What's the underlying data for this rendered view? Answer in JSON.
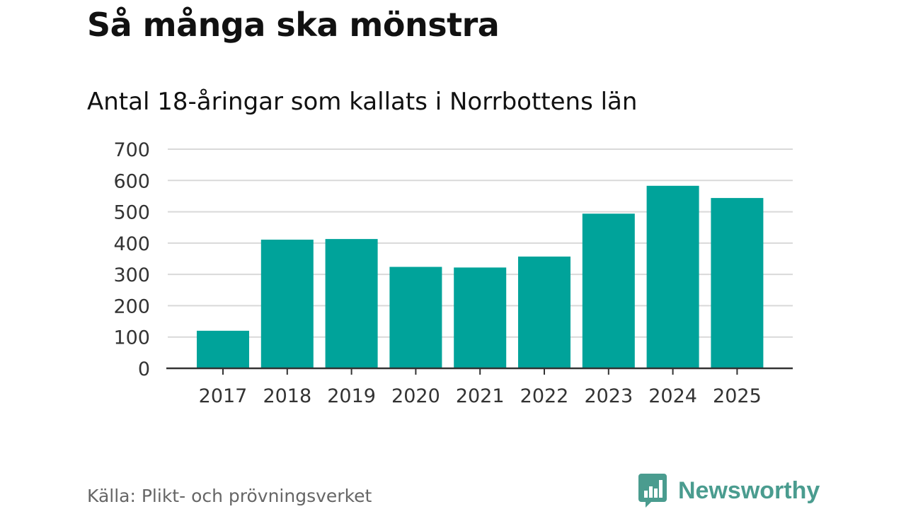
{
  "header": {
    "title": "Så många ska mönstra",
    "subtitle": "Antal 18-åringar som kallats i Norrbottens län"
  },
  "chart_data": {
    "type": "bar",
    "title": "Så många ska mönstra",
    "subtitle": "Antal 18-åringar som kallats i Norrbottens län",
    "categories": [
      "2017",
      "2018",
      "2019",
      "2020",
      "2021",
      "2022",
      "2023",
      "2024",
      "2025"
    ],
    "values": [
      120,
      411,
      413,
      324,
      322,
      357,
      494,
      583,
      544
    ],
    "yticks": [
      "0",
      "100",
      "200",
      "300",
      "400",
      "500",
      "600",
      "700"
    ],
    "ylim": [
      0,
      700
    ],
    "grid": true,
    "legend": "none",
    "xlabel": "",
    "ylabel": "",
    "bar_color": "#00a39a"
  },
  "footer": {
    "source": "Källa: Plikt- och prövningsverket",
    "brand": "Newsworthy",
    "brand_color": "#4a9c8f",
    "brand_icon": "newsworthy-bar-chart-icon"
  }
}
